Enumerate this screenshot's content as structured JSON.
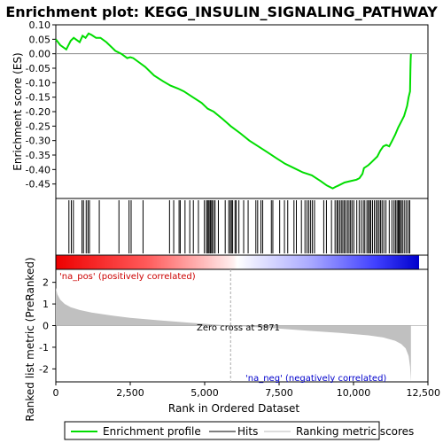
{
  "chart_data": {
    "type": "line",
    "title": "Enrichment plot: KEGG_INSULIN_SIGNALING_PATHWAY",
    "top_panel": {
      "ylabel": "Enrichment score (ES)",
      "ylim": [
        -0.5,
        0.1
      ],
      "yticks": [
        0.1,
        0.05,
        0.0,
        -0.05,
        -0.1,
        -0.15,
        -0.2,
        -0.25,
        -0.3,
        -0.35,
        -0.4,
        -0.45
      ],
      "ytick_labels": [
        "0.10",
        "0.05",
        "0.00",
        "-0.05",
        "-0.10",
        "-0.15",
        "-0.20",
        "-0.25",
        "-0.30",
        "-0.35",
        "-0.40",
        "-0.45"
      ],
      "series": [
        {
          "name": "Enrichment profile",
          "color": "#00dd00",
          "x": [
            0,
            150,
            350,
            500,
            600,
            800,
            900,
            1000,
            1100,
            1200,
            1350,
            1500,
            1700,
            2000,
            2200,
            2400,
            2500,
            2600,
            2800,
            3000,
            3300,
            3600,
            3850,
            4100,
            4300,
            4600,
            4900,
            5100,
            5300,
            5600,
            5871,
            6200,
            6500,
            6800,
            7100,
            7400,
            7700,
            8000,
            8300,
            8600,
            8900,
            9100,
            9300,
            9400,
            9500,
            9700,
            9900,
            10100,
            10200,
            10300,
            10350,
            10500,
            10600,
            10700,
            10800,
            10900,
            11000,
            11100,
            11200,
            11300,
            11400,
            11500,
            11600,
            11700,
            11800,
            11850,
            11900,
            11910,
            11920,
            11930
          ],
          "y": [
            0.05,
            0.03,
            0.015,
            0.045,
            0.055,
            0.04,
            0.062,
            0.055,
            0.07,
            0.065,
            0.055,
            0.055,
            0.04,
            0.01,
            0.0,
            -0.015,
            -0.012,
            -0.015,
            -0.03,
            -0.045,
            -0.075,
            -0.095,
            -0.11,
            -0.12,
            -0.13,
            -0.15,
            -0.17,
            -0.19,
            -0.2,
            -0.225,
            -0.25,
            -0.275,
            -0.3,
            -0.32,
            -0.34,
            -0.36,
            -0.38,
            -0.395,
            -0.41,
            -0.42,
            -0.44,
            -0.455,
            -0.465,
            -0.46,
            -0.455,
            -0.445,
            -0.44,
            -0.435,
            -0.43,
            -0.415,
            -0.395,
            -0.385,
            -0.375,
            -0.365,
            -0.355,
            -0.335,
            -0.32,
            -0.315,
            -0.32,
            -0.3,
            -0.28,
            -0.255,
            -0.235,
            -0.215,
            -0.18,
            -0.15,
            -0.13,
            -0.06,
            -0.02,
            0.0
          ]
        }
      ]
    },
    "hits": [
      440,
      520,
      590,
      880,
      930,
      1020,
      1080,
      1130,
      1460,
      2120,
      2460,
      2530,
      2930,
      3820,
      3960,
      4140,
      4180,
      4340,
      4500,
      4620,
      4790,
      4990,
      5060,
      5100,
      5140,
      5180,
      5210,
      5250,
      5300,
      5350,
      5460,
      5690,
      5810,
      5860,
      5900,
      5940,
      6020,
      6060,
      6150,
      6310,
      6460,
      6720,
      6780,
      6890,
      6950,
      7240,
      7290,
      7520,
      7680,
      7790,
      8000,
      8080,
      8250,
      8370,
      8440,
      8500,
      8560,
      8620,
      8690,
      9000,
      9090,
      9260,
      9380,
      9440,
      9480,
      9540,
      9590,
      9640,
      9690,
      9740,
      9800,
      9850,
      9900,
      9950,
      10010,
      10110,
      10190,
      10260,
      10330,
      10380,
      10450,
      10500,
      10540,
      10580,
      10640,
      10700,
      10760,
      10810,
      10860,
      10910,
      10960,
      11020,
      11090,
      11200,
      11290,
      11360,
      11410,
      11460,
      11500,
      11530,
      11570,
      11610,
      11660,
      11720,
      11780,
      11840,
      11890
    ],
    "bottom_panel": {
      "ylabel": "Ranked list metric (PreRanked)",
      "xlabel": "Rank in Ordered Dataset",
      "ylim": [
        -2.6,
        2.6
      ],
      "yticks": [
        2,
        1,
        0,
        -1,
        -2
      ],
      "ytick_labels": [
        "2",
        "1",
        "0",
        "-1",
        "-2"
      ],
      "xlim": [
        0,
        12000
      ],
      "xticks": [
        0,
        2500,
        5000,
        7500,
        10000,
        12500
      ],
      "xtick_labels": [
        "0",
        "2,500",
        "5,000",
        "7,500",
        "10,000",
        "12,500"
      ],
      "metric_x": [
        0,
        50,
        150,
        300,
        500,
        800,
        1200,
        1800,
        2500,
        3500,
        4500,
        5500,
        5871,
        6500,
        7500,
        8500,
        9500,
        10500,
        11000,
        11400,
        11600,
        11750,
        11850,
        11900,
        11930
      ],
      "metric_y": [
        1.75,
        1.45,
        1.2,
        1.0,
        0.85,
        0.72,
        0.6,
        0.48,
        0.36,
        0.24,
        0.13,
        0.03,
        0.0,
        -0.05,
        -0.14,
        -0.24,
        -0.33,
        -0.45,
        -0.55,
        -0.7,
        -0.85,
        -1.05,
        -1.4,
        -1.9,
        -2.6
      ],
      "annotations": {
        "pos_label": "'na_pos' (positively correlated)",
        "neg_label": "'na_neg' (negatively correlated)",
        "zero_cross": "Zero cross at 5871",
        "zero_cross_x": 5871
      }
    },
    "legend": {
      "items": [
        {
          "label": "Enrichment profile",
          "color": "#00dd00"
        },
        {
          "label": "Hits",
          "color": "#000000"
        },
        {
          "label": "Ranking metric scores",
          "color": "#bbbbbb"
        }
      ]
    },
    "colors": {
      "profile": "#00dd00",
      "metric_fill": "#c0c0c0",
      "pos_label": "#cc0000",
      "neg_label": "#0000cc",
      "heat_pos": "#ff0000",
      "heat_neg": "#0000ff"
    }
  }
}
